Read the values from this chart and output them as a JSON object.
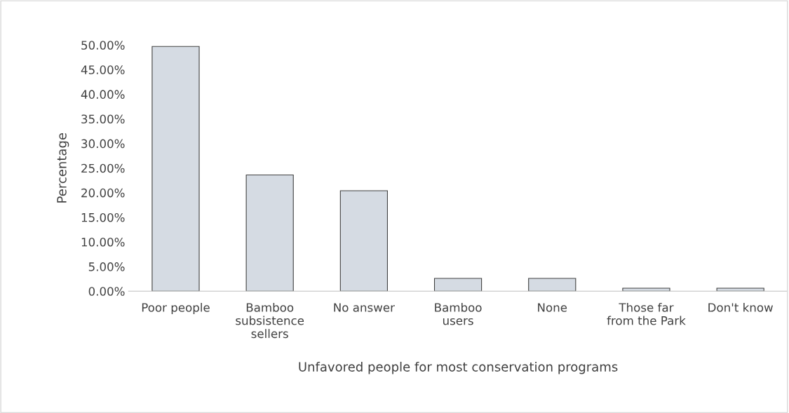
{
  "chart_data": {
    "type": "bar",
    "xlabel": "Unfavored people for most conservation programs",
    "ylabel": "Percentage",
    "categories": [
      "Poor people",
      "Bamboo\nsubsistence\nsellers",
      "No answer",
      "Bamboo\nusers",
      "None",
      "Those far\nfrom the Park",
      "Don't know"
    ],
    "values": [
      49.7,
      23.6,
      20.4,
      2.6,
      2.6,
      0.6,
      0.6
    ],
    "color": "#d5dbe3",
    "ylim": [
      0,
      50
    ],
    "yticks": [
      {
        "value": 0,
        "label": "0.00%"
      },
      {
        "value": 5,
        "label": "5.00%"
      },
      {
        "value": 10,
        "label": "10.00%"
      },
      {
        "value": 15,
        "label": "15.00%"
      },
      {
        "value": 20,
        "label": "20.00%"
      },
      {
        "value": 25,
        "label": "25.00%"
      },
      {
        "value": 30,
        "label": "30.00%"
      },
      {
        "value": 35,
        "label": "35.00%"
      },
      {
        "value": 40,
        "label": "40.00%"
      },
      {
        "value": 45,
        "label": "45.00%"
      },
      {
        "value": 50,
        "label": "50.00%"
      }
    ],
    "grid": false
  }
}
